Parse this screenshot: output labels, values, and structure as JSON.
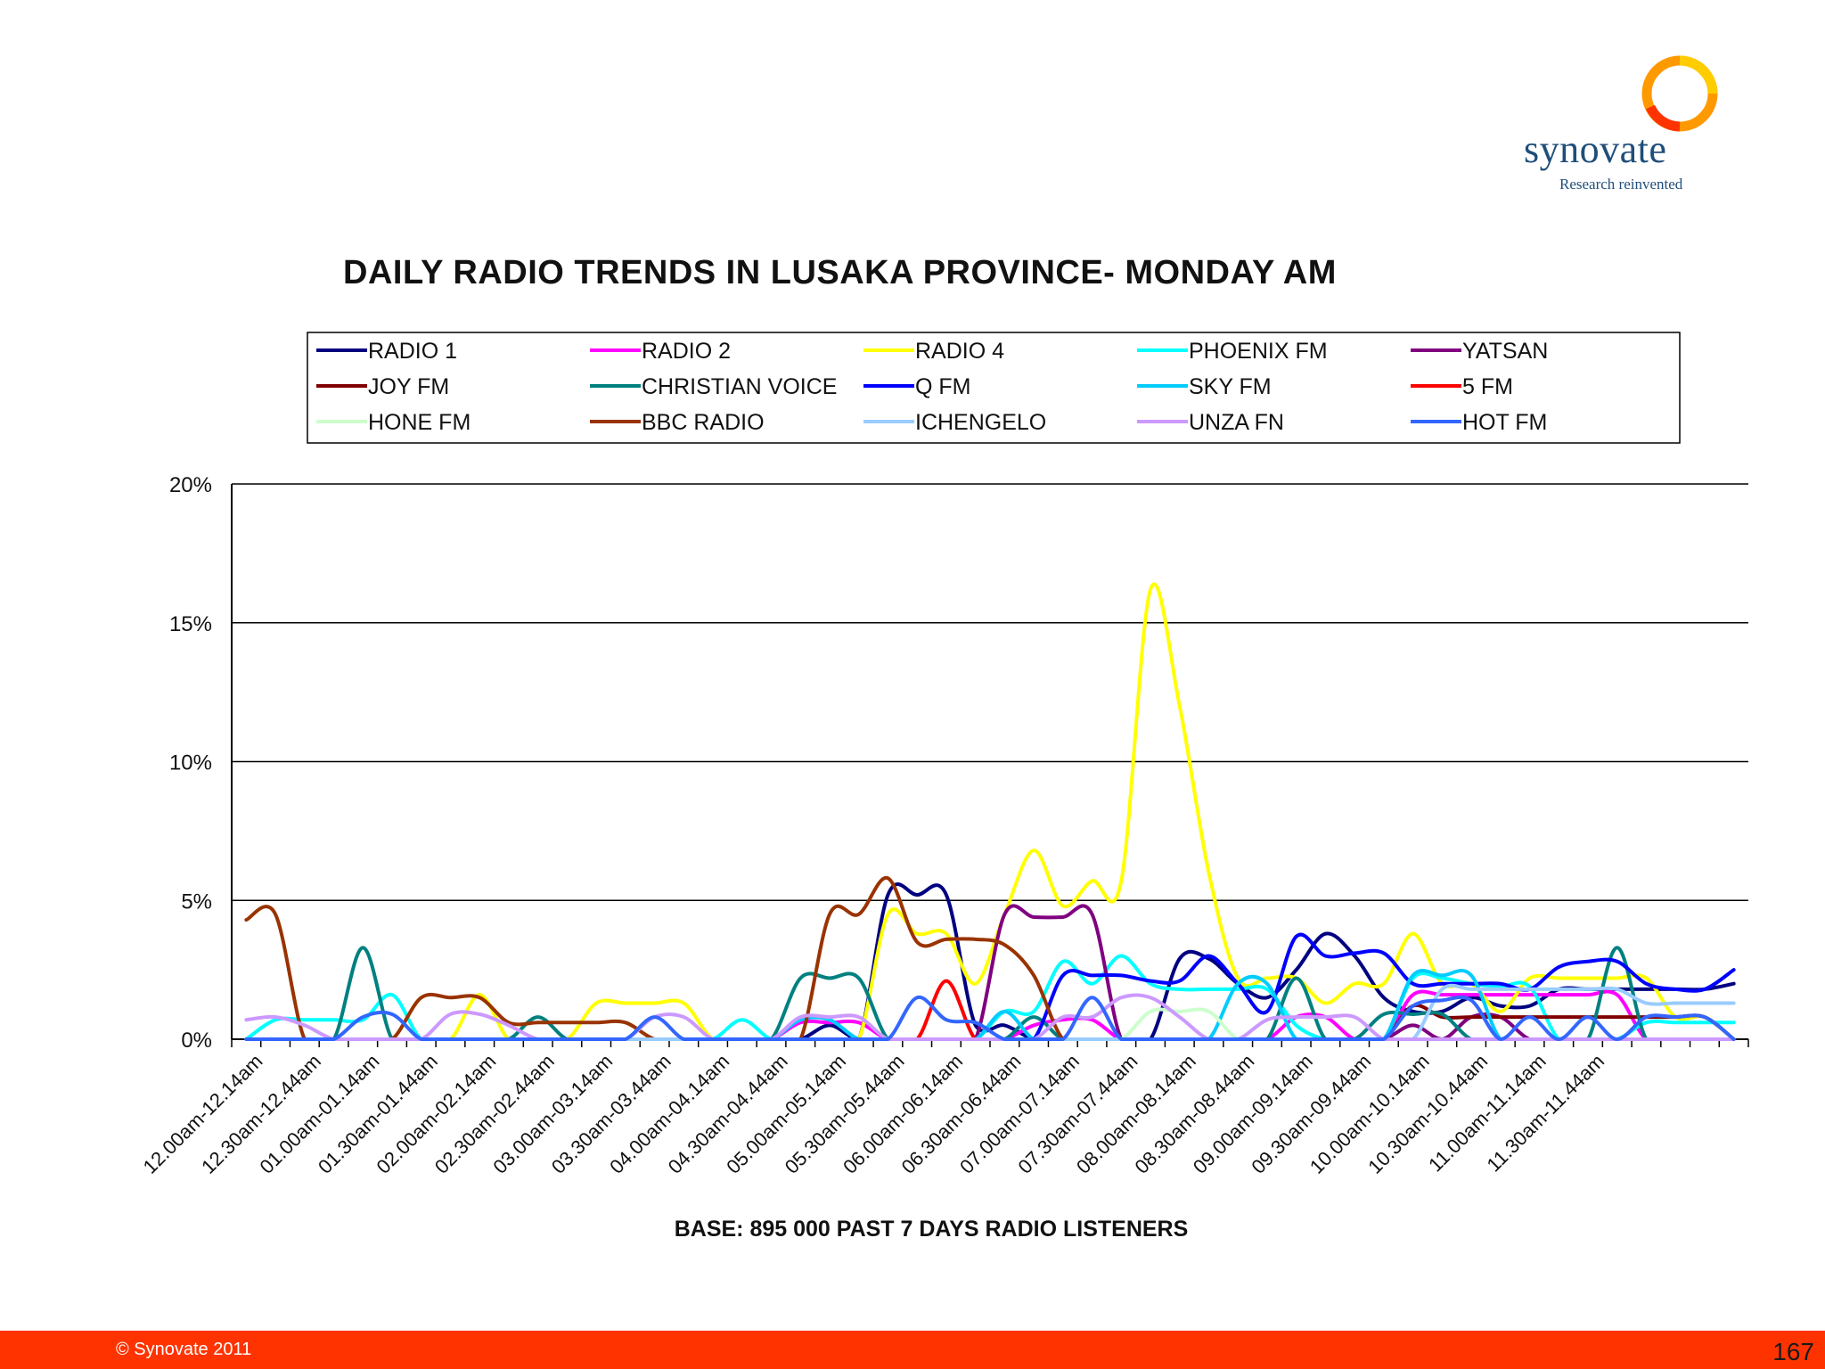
{
  "logo": {
    "word": "synovate",
    "tagline": "Research reinvented"
  },
  "footer": {
    "copyright": "© Synovate 2011",
    "page_number": "167"
  },
  "chart_data": {
    "type": "line",
    "title": "DAILY RADIO TRENDS IN  LUSAKA PROVINCE- MONDAY AM",
    "xlabel": "BASE:  895 000  PAST 7 DAYS RADIO LISTENERS",
    "ylabel": "",
    "ylim": [
      0,
      20
    ],
    "y_ticks": [
      "0%",
      "5%",
      "10%",
      "15%",
      "20%"
    ],
    "grid": true,
    "legend_position": "top",
    "tick_labels": [
      "12.00am-12.14am",
      "12.30am-12.44am",
      "01.00am-01.14am",
      "01.30am-01.44am",
      "02.00am-02.14am",
      "02.30am-02.44am",
      "03.00am-03.14am",
      "03.30am-03.44am",
      "04.00am-04.14am",
      "04.30am-04.44am",
      "05.00am-05.14am",
      "05.30am-05.44am",
      "06.00am-06.14am",
      "06.30am-06.44am",
      "07.00am-07.14am",
      "07.30am-07.44am",
      "08.00am-08.14am",
      "08.30am-08.44am",
      "09.00am-09.14am",
      "09.30am-09.44am",
      "10.00am-10.14am",
      "10.30am-10.44am",
      "11.00am-11.14am",
      "11.30am-11.44am"
    ],
    "series": [
      {
        "name": "RADIO 1",
        "color": "#000080",
        "values": [
          0,
          0,
          0,
          0,
          0,
          0,
          0,
          0,
          0,
          0,
          0,
          0,
          0,
          0,
          0,
          0,
          0,
          0,
          0,
          0,
          0.5,
          0,
          5.2,
          5.2,
          5.2,
          0.5,
          0.5,
          0,
          0,
          0,
          0,
          0,
          2.9,
          2.9,
          2.0,
          1.5,
          2.5,
          3.8,
          3.0,
          1.5,
          1.0,
          1.0,
          1.5,
          1.2,
          1.2,
          1.8,
          1.8,
          1.8,
          1.8,
          1.8,
          1.8,
          2.0
        ]
      },
      {
        "name": "RADIO 2",
        "color": "#ff00ff",
        "values": [
          0,
          0,
          0,
          0,
          0,
          0,
          0,
          0,
          0,
          0,
          0,
          0,
          0,
          0,
          0,
          0,
          0,
          0,
          0,
          0.6,
          0.6,
          0.6,
          0,
          0,
          0,
          0,
          0,
          0.5,
          0.7,
          0.7,
          0,
          0,
          0,
          0,
          0,
          0,
          0.8,
          0.8,
          0,
          0,
          1.6,
          1.6,
          1.6,
          1.6,
          1.6,
          1.6,
          1.6,
          1.6,
          0,
          0,
          0,
          0
        ]
      },
      {
        "name": "RADIO 4",
        "color": "#ffff00",
        "values": [
          0,
          0,
          0,
          0,
          0,
          0,
          0,
          0,
          1.6,
          0,
          0,
          0,
          1.3,
          1.3,
          1.3,
          1.3,
          0,
          0,
          0,
          0,
          0,
          0,
          4.5,
          3.8,
          3.8,
          2.0,
          4.5,
          6.8,
          4.8,
          5.7,
          5.7,
          16.2,
          12,
          6,
          2.2,
          2.2,
          2.2,
          1.3,
          2.0,
          2.0,
          3.8,
          2.0,
          2.0,
          1.0,
          2.2,
          2.2,
          2.2,
          2.2,
          2.2,
          0.8,
          0.8,
          0
        ]
      },
      {
        "name": "PHOENIX FM",
        "color": "#00ffff",
        "values": [
          0,
          0.7,
          0.7,
          0.7,
          0.7,
          1.6,
          0,
          0,
          0,
          0,
          0,
          0,
          0,
          0,
          0,
          0,
          0,
          0.7,
          0,
          0,
          0,
          0,
          0,
          0,
          0,
          0,
          1.0,
          1.0,
          2.8,
          2.0,
          3.0,
          2.0,
          1.8,
          1.8,
          1.8,
          1.8,
          0.5,
          0,
          0,
          0,
          2.2,
          2.2,
          2.0,
          1.9,
          1.9,
          0,
          0,
          0,
          0.6,
          0.6,
          0.6,
          0.6
        ]
      },
      {
        "name": "YATSAN",
        "color": "#800080",
        "values": [
          0,
          0,
          0,
          0,
          0,
          0,
          0,
          0,
          0,
          0,
          0,
          0,
          0,
          0,
          0,
          0,
          0,
          0,
          0,
          0,
          0,
          0,
          0,
          0,
          0,
          0,
          4.5,
          4.4,
          4.4,
          4.5,
          0,
          0,
          0,
          0,
          0,
          0,
          0,
          0,
          0,
          0,
          0.5,
          0,
          0.8,
          0.8,
          0,
          0,
          0,
          0,
          0,
          0,
          0,
          0
        ]
      },
      {
        "name": "JOY FM",
        "color": "#800000",
        "values": [
          0,
          0,
          0,
          0,
          0,
          0,
          0,
          0,
          0,
          0,
          0,
          0,
          0,
          0,
          0,
          0,
          0,
          0,
          0,
          0,
          0,
          0,
          0,
          0,
          0,
          0,
          0,
          0,
          0,
          0,
          0,
          0,
          0,
          0,
          0,
          0,
          0,
          0,
          0,
          0,
          1.2,
          0.8,
          0.8,
          0.8,
          0.8,
          0.8,
          0.8,
          0.8,
          0.8,
          0.8,
          0.8,
          0
        ]
      },
      {
        "name": "CHRISTIAN VOICE",
        "color": "#008080",
        "values": [
          0,
          0,
          0,
          0,
          3.3,
          0,
          0,
          0,
          0,
          0,
          0.8,
          0,
          0,
          0,
          0,
          0,
          0,
          0,
          0,
          2.2,
          2.2,
          2.2,
          0,
          0,
          0,
          0,
          0,
          0.8,
          0,
          0,
          0,
          0,
          0,
          0,
          0,
          0,
          2.2,
          0,
          0,
          0.9,
          0.9,
          0.9,
          0,
          0,
          0,
          0,
          0,
          3.3,
          0,
          0,
          0,
          0
        ]
      },
      {
        "name": "Q FM",
        "color": "#0000ff",
        "values": [
          0,
          0,
          0,
          0,
          0,
          0,
          0,
          0,
          0,
          0,
          0,
          0,
          0,
          0,
          0,
          0,
          0,
          0,
          0,
          0,
          0,
          0,
          0,
          0,
          0,
          0,
          0,
          0,
          2.3,
          2.3,
          2.3,
          2.1,
          2.1,
          3.0,
          2.0,
          1.0,
          3.7,
          3.0,
          3.1,
          3.1,
          2.0,
          2.0,
          2.0,
          2.0,
          1.8,
          2.6,
          2.8,
          2.8,
          2.0,
          1.8,
          1.8,
          2.5
        ]
      },
      {
        "name": "SKY FM",
        "color": "#00ccff",
        "values": [
          0,
          0,
          0,
          0,
          0,
          0,
          0,
          0,
          0,
          0,
          0,
          0,
          0,
          0,
          0,
          0,
          0,
          0,
          0,
          0.7,
          0.7,
          0,
          0,
          0,
          0,
          0,
          1.0,
          0,
          0,
          0,
          0,
          0,
          0,
          0,
          2.0,
          2.0,
          0,
          0,
          0,
          0,
          2.3,
          2.3,
          2.3,
          0,
          0,
          0,
          0,
          0,
          0,
          0,
          0,
          0
        ]
      },
      {
        "name": "5 FM",
        "color": "#ff0000",
        "values": [
          0,
          0,
          0,
          0,
          0,
          0,
          0,
          0,
          0,
          0,
          0,
          0,
          0,
          0,
          0,
          0,
          0,
          0,
          0,
          0,
          0,
          0,
          0,
          0,
          2.1,
          0,
          0,
          0,
          0,
          0,
          0,
          0,
          0,
          0,
          0,
          0,
          0,
          0,
          0,
          0,
          0,
          0,
          0,
          0,
          0,
          0,
          0,
          0,
          0,
          0,
          0,
          0
        ]
      },
      {
        "name": "HONE FM",
        "color": "#ccffcc",
        "values": [
          0,
          0,
          0,
          0,
          0,
          0,
          0,
          0,
          0,
          0,
          0,
          0,
          0,
          0,
          0,
          0,
          0,
          0,
          0,
          0,
          0,
          0,
          0,
          0,
          0,
          0,
          0,
          0,
          0,
          0,
          0,
          1.0,
          1.0,
          1.0,
          0,
          0,
          0,
          0,
          0,
          0,
          0,
          0,
          0,
          0,
          0,
          0,
          0,
          0,
          0,
          0,
          0,
          0
        ]
      },
      {
        "name": "BBC RADIO",
        "color": "#993300",
        "values": [
          4.3,
          4.5,
          0,
          0,
          0,
          0,
          1.5,
          1.5,
          1.5,
          0.6,
          0.6,
          0.6,
          0.6,
          0.6,
          0,
          0,
          0,
          0,
          0,
          0,
          4.5,
          4.5,
          5.8,
          3.5,
          3.6,
          3.6,
          3.4,
          2.3,
          0,
          0,
          0,
          0,
          0,
          0,
          0,
          0,
          0,
          0,
          0,
          0,
          0,
          0,
          0,
          0,
          0,
          0,
          0,
          0,
          0,
          0,
          0,
          0
        ]
      },
      {
        "name": "ICHENGELO",
        "color": "#99ccff",
        "values": [
          0,
          0,
          0,
          0,
          0,
          0,
          0,
          0,
          0,
          0,
          0,
          0,
          0,
          0,
          0,
          0,
          0,
          0,
          0,
          0,
          0,
          0,
          0,
          0,
          0,
          0,
          0,
          0,
          0,
          0,
          0,
          0,
          0,
          0,
          0,
          0,
          0,
          0,
          0,
          0,
          0,
          1.8,
          1.8,
          1.8,
          1.8,
          1.8,
          1.8,
          1.8,
          1.3,
          1.3,
          1.3,
          1.3
        ]
      },
      {
        "name": "UNZA FN",
        "color": "#cc99ff",
        "values": [
          0.7,
          0.8,
          0.5,
          0,
          0,
          0,
          0,
          0.9,
          0.9,
          0.5,
          0,
          0,
          0,
          0,
          0.8,
          0.8,
          0,
          0,
          0,
          0.8,
          0.8,
          0.8,
          0,
          0,
          0,
          0,
          0,
          0,
          0.8,
          0.8,
          1.5,
          1.5,
          0.8,
          0,
          0,
          0.7,
          0.8,
          0.8,
          0.8,
          0,
          0,
          0,
          0,
          0,
          0,
          0,
          0,
          0,
          0,
          0,
          0,
          0
        ]
      },
      {
        "name": "HOT FM",
        "color": "#3366ff",
        "values": [
          0,
          0,
          0,
          0,
          0.8,
          0.9,
          0,
          0,
          0,
          0,
          0,
          0,
          0,
          0,
          0.8,
          0,
          0,
          0,
          0,
          0,
          0,
          0,
          0,
          1.5,
          0.7,
          0.6,
          0,
          0,
          0,
          1.5,
          0,
          0,
          0,
          0,
          0,
          0,
          0,
          0,
          0,
          0,
          1.2,
          1.4,
          1.4,
          0,
          0.8,
          0,
          0.8,
          0,
          0.8,
          0.8,
          0.8,
          0
        ]
      }
    ]
  }
}
